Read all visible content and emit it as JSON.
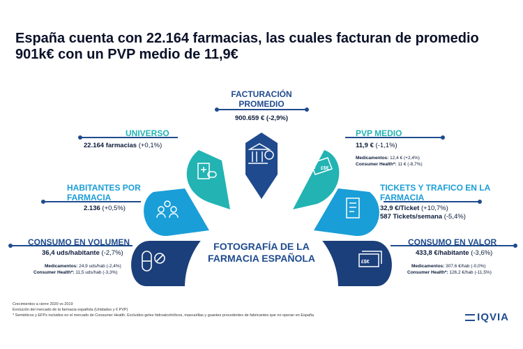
{
  "title": "España cuenta con 22.164 farmacias, las cuales facturan de promedio 901k€ con un PVP medio de 11,9€",
  "facturacion": {
    "head": "FACTURACIÓN PROMEDIO",
    "value": "900.659 € (-2,9%)"
  },
  "universo": {
    "head": "UNIVERSO",
    "value": "22.164 farmacias",
    "change": "(+0,1%)"
  },
  "pvp": {
    "head": "PVP MEDIO",
    "value": "11,9 €",
    "change": "(-1,1%)",
    "med_label": "Medicamentos:",
    "med_value": "12,4  € (+2,4%)",
    "ch_label": "Consumer Health*:",
    "ch_value": "11 € (-8,7%)"
  },
  "habitantes": {
    "head": "HABITANTES POR FARMACIA",
    "value": "2.136",
    "change": "(+0,5%)"
  },
  "tickets": {
    "head": "TICKETS Y TRAFICO EN LA FARMACIA",
    "value1": "32,9 €/Ticket",
    "change1": "(+10,7%)",
    "value2": "587 Tickets/semana",
    "change2": "(-5,4%)"
  },
  "volumen": {
    "head": "CONSUMO EN VOLUMEN",
    "value": "36,4 uds/habitante",
    "change": "(-2,7%)",
    "med_label": "Medicamentos:",
    "med_value": "24,9  uds/hab (-2,4%)",
    "ch_label": "Consumer Health*:",
    "ch_value": "11,5 uds/hab (-3,3%)"
  },
  "valor": {
    "head": "CONSUMO EN VALOR",
    "value": "433,8 €/habitante",
    "change": "(-3,6%)",
    "med_label": "Medicamentos:",
    "med_value": "307,6  €/hab (-0,0%)",
    "ch_label": "Consumer Health*:",
    "ch_value": "126,2 €/hab (-11,5%)"
  },
  "center_title": "FOTOGRAFÍA DE LA FARMACIA ESPAÑOLA",
  "footnote1": "Crecimientos a cierre 2020 vs 2019",
  "footnote2": "Evolución del mercado de la farmacia española (Unidades y € PVP)",
  "footnote3": "* Semiéticos y EFPs incluidos en el mercado de Consumer Health. Excluidos geles hidroalcohólicos, mascarillas y guantes procedentes de fabricantes que no operan en España",
  "logo": "IQVIA",
  "colors": {
    "navy": "#1f4b8e",
    "teal": "#23b3b3",
    "cyan": "#1a9ed8",
    "dark": "#1b3f7a"
  }
}
